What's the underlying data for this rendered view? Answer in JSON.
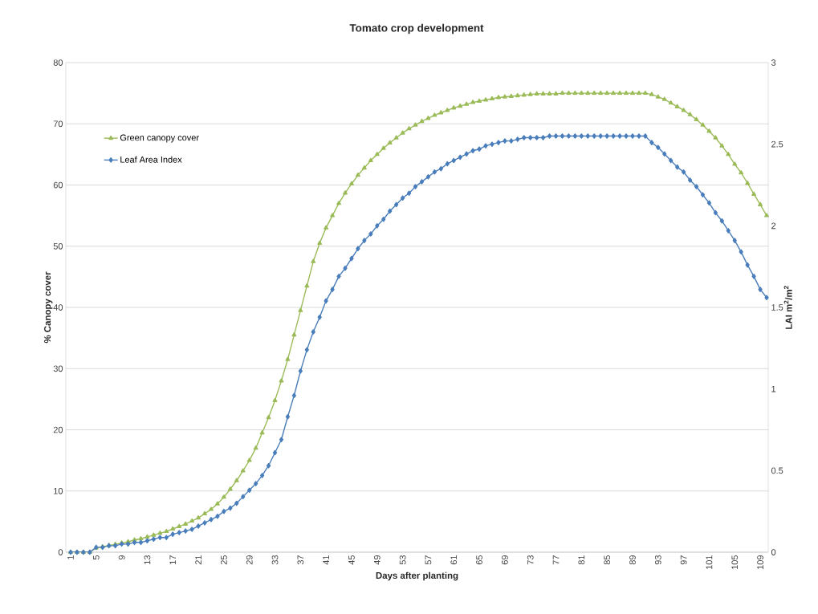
{
  "chart_data": {
    "type": "line",
    "title": "Tomato crop development",
    "xlabel": "Days after planting",
    "ylabel": "% Canopy cover",
    "y2label": "LAI m$^{2}$/m$^{2}$",
    "categories": [
      "1",
      null,
      null,
      null,
      "5",
      null,
      null,
      null,
      "9",
      null,
      null,
      null,
      "13",
      null,
      null,
      null,
      "17",
      null,
      null,
      null,
      "21",
      null,
      null,
      null,
      "25",
      null,
      null,
      null,
      "29",
      null,
      null,
      null,
      "33",
      null,
      null,
      null,
      "37",
      null,
      null,
      null,
      "41",
      null,
      null,
      null,
      "45",
      null,
      null,
      null,
      "49",
      null,
      null,
      null,
      "53",
      null,
      null,
      null,
      "57",
      null,
      null,
      null,
      "61",
      null,
      null,
      null,
      "65",
      null,
      null,
      null,
      "69",
      null,
      null,
      null,
      "73",
      null,
      null,
      null,
      "77",
      null,
      null,
      null,
      "81",
      null,
      null,
      null,
      "85",
      null,
      null,
      null,
      "89",
      null,
      null,
      null,
      "93",
      null,
      null,
      null,
      "97",
      null,
      null,
      null,
      "101",
      null,
      null,
      null,
      "105",
      null,
      null,
      null,
      "109",
      null
    ],
    "series": [
      {
        "name": "Green canopy cover",
        "color": "#9bbb59",
        "marker": "triangle",
        "values": [
          0,
          0,
          0,
          0,
          0.7,
          0.9,
          1.1,
          1.3,
          1.5,
          1.7,
          2.0,
          2.2,
          2.5,
          2.8,
          3.1,
          3.4,
          3.8,
          4.2,
          4.6,
          5.1,
          5.6,
          6.3,
          7.0,
          7.9,
          9.0,
          10.3,
          11.7,
          13.3,
          15.0,
          17.0,
          19.5,
          22.0,
          24.8,
          28.0,
          31.5,
          35.5,
          39.5,
          43.5,
          47.5,
          50.5,
          53,
          55,
          57,
          58.7,
          60.2,
          61.6,
          62.8,
          64,
          65,
          66,
          66.9,
          67.7,
          68.5,
          69.2,
          69.8,
          70.4,
          70.9,
          71.4,
          71.8,
          72.2,
          72.6,
          72.9,
          73.2,
          73.5,
          73.7,
          73.9,
          74.1,
          74.3,
          74.4,
          74.5,
          74.6,
          74.7,
          74.8,
          74.9,
          74.9,
          74.9,
          74.9,
          75,
          75,
          75,
          75,
          75,
          75,
          75,
          75,
          75,
          75,
          75,
          75,
          75,
          75,
          74.8,
          74.4,
          74,
          73.4,
          72.8,
          72.2,
          71.5,
          70.7,
          69.8,
          68.8,
          67.7,
          66.4,
          65,
          63.4,
          62,
          60.3,
          58.5,
          56.8,
          55
        ]
      },
      {
        "name": "Leaf Area Index",
        "color": "#4a7ebb",
        "marker": "diamond",
        "axis": "y2",
        "values": [
          0,
          0,
          0,
          0,
          0.03,
          0.03,
          0.04,
          0.04,
          0.05,
          0.05,
          0.06,
          0.06,
          0.07,
          0.08,
          0.09,
          0.09,
          0.11,
          0.12,
          0.13,
          0.14,
          0.16,
          0.18,
          0.2,
          0.22,
          0.25,
          0.27,
          0.3,
          0.34,
          0.38,
          0.42,
          0.47,
          0.53,
          0.61,
          0.69,
          0.83,
          0.96,
          1.11,
          1.24,
          1.35,
          1.44,
          1.54,
          1.61,
          1.69,
          1.74,
          1.8,
          1.86,
          1.91,
          1.95,
          2.0,
          2.04,
          2.09,
          2.13,
          2.17,
          2.2,
          2.24,
          2.27,
          2.3,
          2.33,
          2.35,
          2.38,
          2.4,
          2.42,
          2.44,
          2.46,
          2.47,
          2.49,
          2.5,
          2.51,
          2.52,
          2.52,
          2.53,
          2.54,
          2.54,
          2.54,
          2.54,
          2.55,
          2.55,
          2.55,
          2.55,
          2.55,
          2.55,
          2.55,
          2.55,
          2.55,
          2.55,
          2.55,
          2.55,
          2.55,
          2.55,
          2.55,
          2.55,
          2.51,
          2.48,
          2.44,
          2.4,
          2.36,
          2.33,
          2.28,
          2.24,
          2.19,
          2.14,
          2.08,
          2.03,
          1.97,
          1.91,
          1.84,
          1.76,
          1.69,
          1.61,
          1.56
        ]
      }
    ],
    "ylim": [
      0,
      80
    ],
    "yticks": [
      0,
      10,
      20,
      30,
      40,
      50,
      60,
      70,
      80
    ],
    "y2lim": [
      0,
      3
    ],
    "y2ticks": [
      0,
      0.5,
      1,
      1.5,
      2,
      2.5,
      3
    ],
    "grid": "y",
    "legend": "top left",
    "line_style": "solid"
  }
}
